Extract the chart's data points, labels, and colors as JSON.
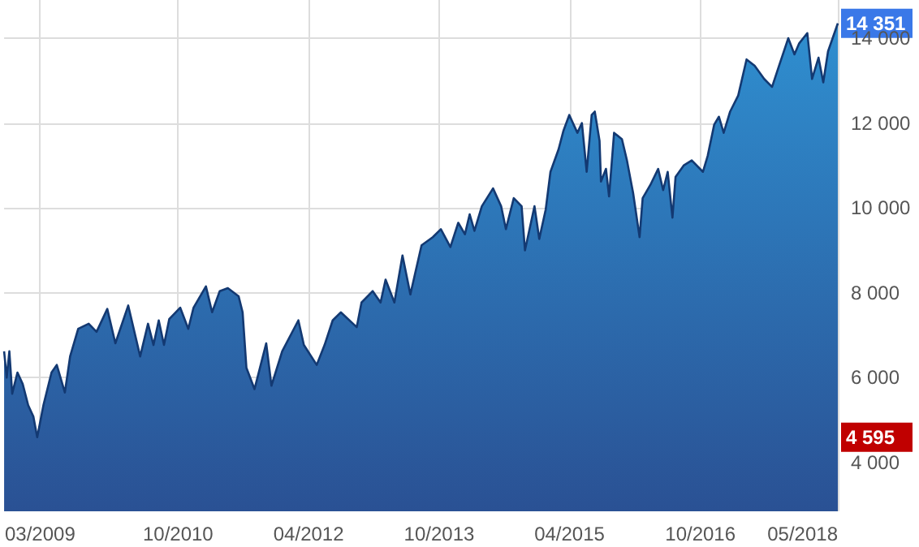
{
  "chart_data": {
    "type": "area",
    "x": [
      "2008-10-01",
      "2008-10-12",
      "2008-10-23",
      "2008-11-04",
      "2008-11-26",
      "2008-12-18",
      "2009-01-10",
      "2009-02-01",
      "2009-02-17",
      "2009-03-15",
      "2009-04-18",
      "2009-05-10",
      "2009-06-13",
      "2009-07-05",
      "2009-08-08",
      "2009-09-21",
      "2009-10-24",
      "2009-12-08",
      "2010-01-11",
      "2010-03-06",
      "2010-04-25",
      "2010-05-28",
      "2010-06-20",
      "2010-07-12",
      "2010-08-03",
      "2010-08-25",
      "2010-10-10",
      "2010-11-13",
      "2010-12-05",
      "2011-01-26",
      "2011-02-21",
      "2011-03-25",
      "2011-04-28",
      "2011-06-12",
      "2011-06-29",
      "2011-07-15",
      "2011-08-18",
      "2011-10-06",
      "2011-10-28",
      "2011-12-12",
      "2012-02-18",
      "2012-03-12",
      "2012-05-05",
      "2012-06-07",
      "2012-07-11",
      "2012-08-14",
      "2012-10-20",
      "2012-11-09",
      "2012-12-26",
      "2013-01-28",
      "2013-02-18",
      "2013-03-27",
      "2013-04-30",
      "2013-06-02",
      "2013-07-19",
      "2013-09-04",
      "2013-10-08",
      "2013-11-17",
      "2013-12-20",
      "2014-01-17",
      "2014-02-06",
      "2014-02-26",
      "2014-03-29",
      "2014-05-15",
      "2014-06-18",
      "2014-07-08",
      "2014-08-10",
      "2014-09-12",
      "2014-09-26",
      "2014-11-05",
      "2014-11-25",
      "2014-12-22",
      "2015-01-11",
      "2015-02-14",
      "2015-03-06",
      "2015-03-31",
      "2015-05-04",
      "2015-05-23",
      "2015-06-12",
      "2015-07-03",
      "2015-07-16",
      "2015-08-05",
      "2015-08-11",
      "2015-09-01",
      "2015-09-14",
      "2015-10-05",
      "2015-11-07",
      "2015-11-28",
      "2015-12-24",
      "2016-01-20",
      "2016-02-02",
      "2016-03-05",
      "2016-04-07",
      "2016-04-28",
      "2016-05-17",
      "2016-06-06",
      "2016-06-19",
      "2016-07-23",
      "2016-08-26",
      "2016-10-12",
      "2016-11-01",
      "2016-11-28",
      "2016-12-18",
      "2017-01-07",
      "2017-02-03",
      "2017-03-09",
      "2017-04-13",
      "2017-05-17",
      "2017-06-26",
      "2017-07-29",
      "2017-08-25",
      "2017-10-05",
      "2017-10-31",
      "2017-11-20",
      "2017-12-24",
      "2018-01-13",
      "2018-02-09",
      "2018-03-01",
      "2018-03-21",
      "2018-05-01"
    ],
    "series": [
      {
        "color": "#2f8fd0",
        "values": [
          6620,
          6000,
          6620,
          5620,
          6120,
          5850,
          5350,
          5080,
          4595,
          5350,
          6120,
          6300,
          5650,
          6500,
          7150,
          7270,
          7080,
          7620,
          6810,
          7700,
          6500,
          7270,
          6770,
          7350,
          6770,
          7380,
          7650,
          7150,
          7650,
          8150,
          7540,
          8040,
          8110,
          7920,
          7540,
          6230,
          5730,
          6810,
          5810,
          6620,
          7350,
          6770,
          6300,
          6770,
          7350,
          7540,
          7190,
          7770,
          8040,
          7770,
          8310,
          7770,
          8880,
          7960,
          9120,
          9310,
          9500,
          9080,
          9650,
          9380,
          9850,
          9460,
          10040,
          10460,
          10040,
          9500,
          10230,
          10040,
          9000,
          10040,
          9270,
          9960,
          10850,
          11380,
          11810,
          12190,
          11770,
          12000,
          10850,
          12190,
          12270,
          11580,
          10620,
          10920,
          10270,
          11770,
          11620,
          11120,
          10350,
          9310,
          10230,
          10540,
          10920,
          10420,
          10850,
          9770,
          10730,
          11000,
          11120,
          10850,
          11230,
          11960,
          12150,
          11770,
          12270,
          12650,
          13500,
          13350,
          13040,
          12850,
          13310,
          14000,
          13620,
          13880,
          14120,
          13040,
          13540,
          12960,
          13690,
          14351
        ]
      }
    ],
    "xlim": [
      "2008-10-01",
      "2018-05-01"
    ],
    "xticks": [
      {
        "value": "2009-03-01",
        "label": "03/2009"
      },
      {
        "value": "2010-10-01",
        "label": "10/2010"
      },
      {
        "value": "2012-04-01",
        "label": "04/2012"
      },
      {
        "value": "2013-10-01",
        "label": "10/2013"
      },
      {
        "value": "2015-04-01",
        "label": "04/2015"
      },
      {
        "value": "2016-10-01",
        "label": "10/2016"
      },
      {
        "value": "2018-05-01",
        "label": "05/2018"
      }
    ],
    "ylim": [
      2850,
      14900
    ],
    "yticks": [
      {
        "value": 4000,
        "label": "4 000"
      },
      {
        "value": 6000,
        "label": "6 000"
      },
      {
        "value": 8000,
        "label": "8 000"
      },
      {
        "value": 10000,
        "label": "10 000"
      },
      {
        "value": 12000,
        "label": "12 000"
      },
      {
        "value": 14000,
        "label": "14 000"
      }
    ],
    "annotations": [
      {
        "text": "14 351",
        "x": "2018-05-01",
        "y": 14351
      },
      "4 595"
    ],
    "grid": true
  }
}
